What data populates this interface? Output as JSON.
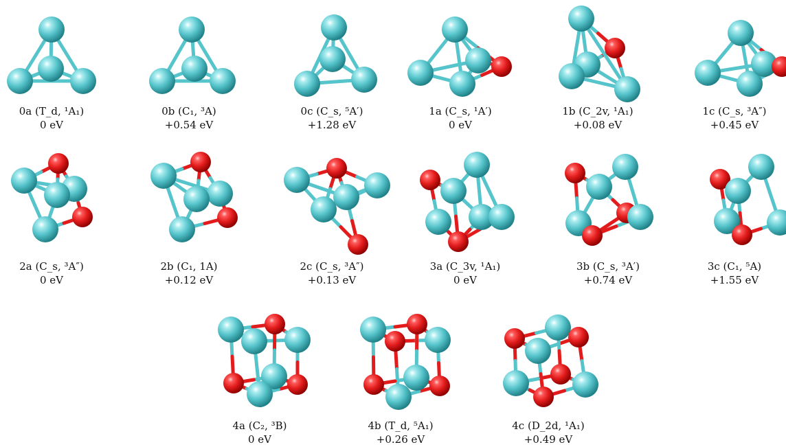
{
  "colors": {
    "atom_a": "#56c4cb",
    "atom_a_dark": "#1f7f86",
    "atom_b": "#e21c1c",
    "atom_b_dark": "#8c0000",
    "bond_a": "#56c4cb",
    "bond_b": "#e21c1c"
  },
  "structures": [
    {
      "label": "0a (T_d, ¹A₁)",
      "energy": "0 eV"
    },
    {
      "label": "0b (C₁, ³A)",
      "energy": "+0.54 eV"
    },
    {
      "label": "0c (C_s, ⁵A′)",
      "energy": "+1.28 eV"
    },
    {
      "label": "1a (C_s, ¹A′)",
      "energy": "0 eV"
    },
    {
      "label": "1b (C_2v, ¹A₁)",
      "energy": "+0.08 eV"
    },
    {
      "label": "1c (C_s, ³A″)",
      "energy": "+0.45 eV"
    },
    {
      "label": "2a (C_s, ³A″)",
      "energy": "0 eV"
    },
    {
      "label": "2b (C₁, 1A)",
      "energy": "+0.12 eV"
    },
    {
      "label": "2c (C_s, ³A″)",
      "energy": "+0.13 eV"
    },
    {
      "label": "3a (C_3v, ¹A₁)",
      "energy": "0 eV"
    },
    {
      "label": "3b (C_s, ³A′)",
      "energy": "+0.74 eV"
    },
    {
      "label": "3c (C₁, ⁵A)",
      "energy": "+1.55 eV"
    },
    {
      "label": "4a (C₂, ³B)",
      "energy": "0 eV"
    },
    {
      "label": "4b (T_d, ⁵A₁)",
      "energy": "+0.26 eV"
    },
    {
      "label": "4c (D_2d, ¹A₁)",
      "energy": "+0.49 eV"
    }
  ]
}
